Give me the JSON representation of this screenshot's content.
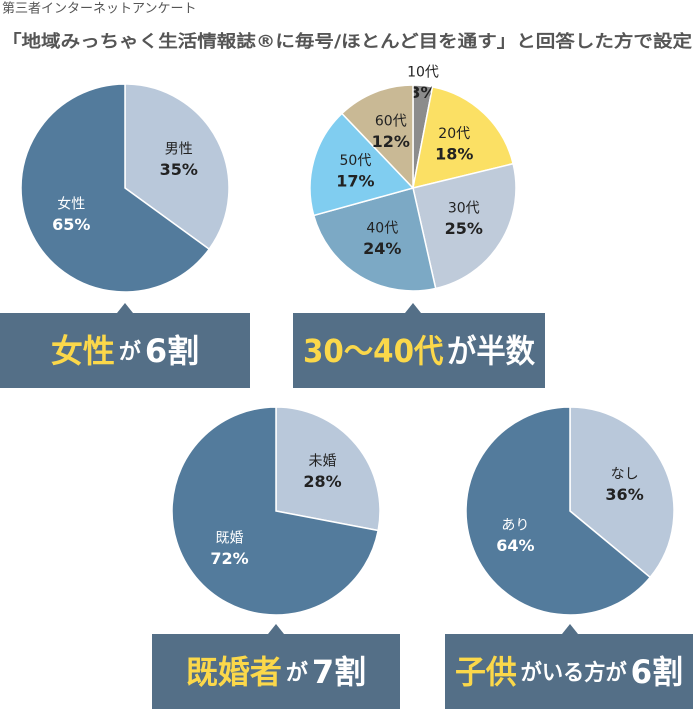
{
  "header": {
    "title": "第三者インターネットアンケート",
    "subtitle": "「地域みっちゃく生活情報誌®に毎号/ほとんど目を通す」と回答した方で設定"
  },
  "chart_data": [
    {
      "type": "pie",
      "categories": [
        "男性",
        "女性"
      ],
      "values": [
        35,
        65
      ],
      "value_labels": [
        "35%",
        "65%"
      ],
      "colors": [
        "#b9c8da",
        "#537b9c"
      ],
      "caption": [
        {
          "text": "女性",
          "color": "#fbd84a"
        },
        {
          "text": "が",
          "color": "#ffffff"
        },
        {
          "text": "6割",
          "color": "#ffffff"
        }
      ]
    },
    {
      "type": "pie",
      "categories": [
        "10代",
        "20代",
        "30代",
        "40代",
        "50代",
        "60代"
      ],
      "values": [
        3,
        18,
        25,
        24,
        17,
        12
      ],
      "value_labels": [
        "3%",
        "18%",
        "25%",
        "24%",
        "17%",
        "12%"
      ],
      "colors": [
        "#8c8c8c",
        "#fbe064",
        "#bfcbda",
        "#7ca9c5",
        "#80cdf0",
        "#c9b995"
      ],
      "caption": [
        {
          "text": "30〜40代",
          "color": "#fbd84a"
        },
        {
          "text": "が半数",
          "color": "#ffffff"
        }
      ]
    },
    {
      "type": "pie",
      "categories": [
        "未婚",
        "既婚"
      ],
      "values": [
        28,
        72
      ],
      "value_labels": [
        "28%",
        "72%"
      ],
      "colors": [
        "#b9c8da",
        "#537b9c"
      ],
      "caption": [
        {
          "text": "既婚者",
          "color": "#fbd84a"
        },
        {
          "text": "が",
          "color": "#ffffff"
        },
        {
          "text": "7割",
          "color": "#ffffff"
        }
      ]
    },
    {
      "type": "pie",
      "categories": [
        "なし",
        "あり"
      ],
      "values": [
        36,
        64
      ],
      "value_labels": [
        "36%",
        "64%"
      ],
      "colors": [
        "#b9c8da",
        "#537b9c"
      ],
      "caption": [
        {
          "text": "子供",
          "color": "#fbd84a"
        },
        {
          "text": "がいる方が",
          "color": "#ffffff"
        },
        {
          "text": "6割",
          "color": "#ffffff"
        }
      ]
    }
  ]
}
